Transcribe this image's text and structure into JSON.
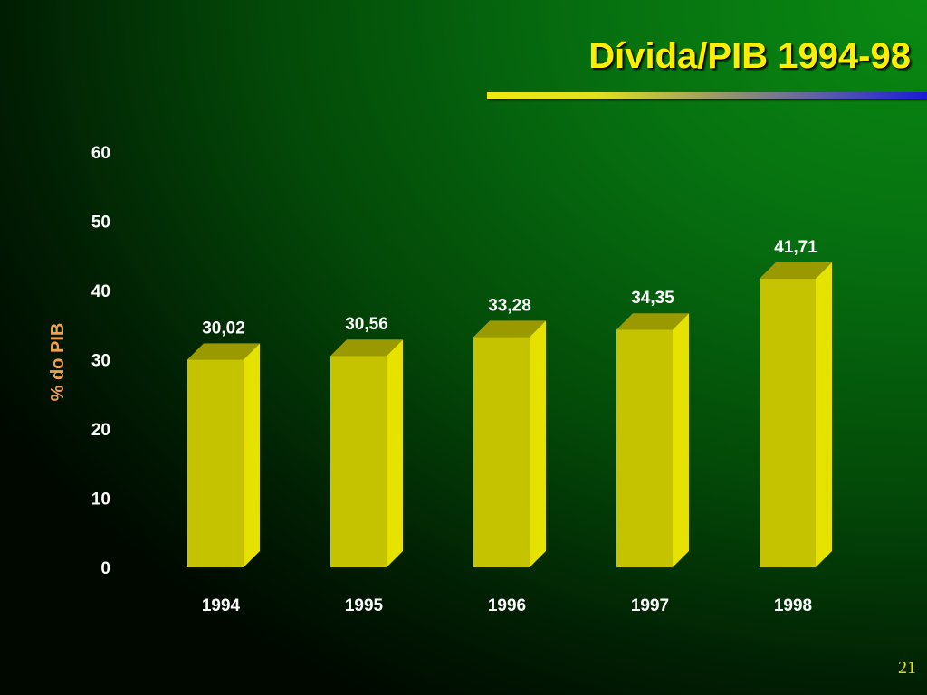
{
  "slide": {
    "title": "Dívida/PIB 1994-98",
    "page_number": "21"
  },
  "colors": {
    "title": "#ffee00",
    "bar_front": "#c5c200",
    "bar_top": "#9b9900",
    "bar_side": "#e6e200",
    "ylabel": "#f0a050",
    "text": "#ffffff"
  },
  "chart_data": {
    "type": "bar",
    "title": "",
    "xlabel": "",
    "ylabel": "% do PIB",
    "categories": [
      "1994",
      "1995",
      "1996",
      "1997",
      "1998"
    ],
    "values": [
      30.02,
      30.56,
      33.28,
      34.35,
      41.71
    ],
    "data_labels": [
      "30,02",
      "30,56",
      "33,28",
      "34,35",
      "41,71"
    ],
    "ylim": [
      0,
      60
    ],
    "yticks": [
      0,
      10,
      20,
      30,
      40,
      50,
      60
    ],
    "grid": false,
    "legend": "none",
    "style": "3d-column"
  }
}
